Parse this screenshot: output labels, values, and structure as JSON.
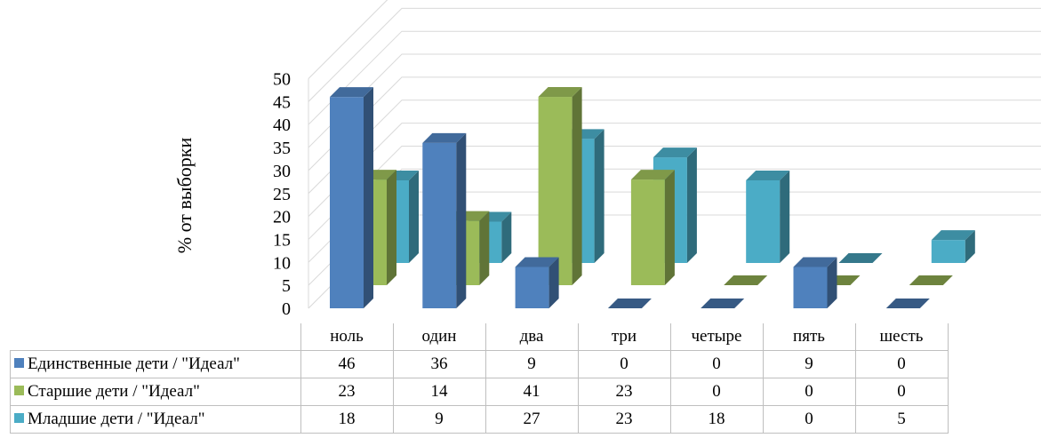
{
  "chart_data": {
    "type": "bar",
    "subtype": "3d-clustered-column",
    "ylabel": "% от выборки",
    "ylim": [
      0,
      50
    ],
    "yticks": [
      "0",
      "5",
      "10",
      "15",
      "20",
      "25",
      "30",
      "35",
      "40",
      "45",
      "50"
    ],
    "categories": [
      "ноль",
      "один",
      "два",
      "три",
      "четыре",
      "пять",
      "шесть"
    ],
    "grid": true,
    "legend": "data-table",
    "series": [
      {
        "name": "Единственные дети / \"Идеал\"",
        "values": [
          46,
          36,
          9,
          0,
          0,
          9,
          0
        ],
        "color": "#4f81bd"
      },
      {
        "name": "Старшие дети / \"Идеал\"",
        "values": [
          23,
          14,
          41,
          23,
          0,
          0,
          0
        ],
        "color": "#9bbb59"
      },
      {
        "name": "Младшие дети / \"Идеал\"",
        "values": [
          18,
          9,
          27,
          23,
          18,
          0,
          5
        ],
        "color": "#4bacc6"
      }
    ],
    "table_cells": [
      [
        "46",
        "36",
        "9",
        "0",
        "0",
        "9",
        "0"
      ],
      [
        "23",
        "14",
        "41",
        "23",
        "0",
        "0",
        "0"
      ],
      [
        "18",
        "9",
        "27",
        "23",
        "18",
        "0",
        "5"
      ]
    ]
  }
}
